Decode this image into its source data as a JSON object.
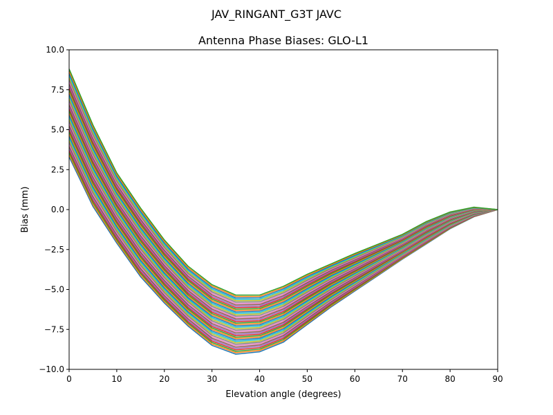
{
  "chart_data": {
    "type": "line",
    "suptitle": "JAV_RINGANT_G3T JAVC",
    "title": "Antenna Phase Biases: GLO-L1",
    "xlabel": "Elevation angle (degrees)",
    "ylabel": "Bias (mm)",
    "xlim": [
      0,
      90
    ],
    "ylim": [
      -10,
      10
    ],
    "xticks": [
      0,
      10,
      20,
      30,
      40,
      50,
      60,
      70,
      80,
      90
    ],
    "yticks": [
      -10.0,
      -7.5,
      -5.0,
      -2.5,
      0.0,
      2.5,
      5.0,
      7.5,
      10.0
    ],
    "ytick_labels": [
      "−10.0",
      "−7.5",
      "−5.0",
      "−2.5",
      "0.0",
      "2.5",
      "5.0",
      "7.5",
      "10.0"
    ],
    "grid": false,
    "colors": [
      "#1f77b4",
      "#ff7f0e",
      "#2ca02c",
      "#d62728",
      "#9467bd",
      "#8c564b",
      "#e377c2",
      "#7f7f7f",
      "#bcbd22",
      "#17becf"
    ],
    "x": [
      0,
      5,
      10,
      15,
      20,
      25,
      30,
      35,
      40,
      45,
      50,
      55,
      60,
      65,
      70,
      75,
      80,
      85,
      90
    ],
    "series": [
      {
        "values": [
          3.3,
          0.2,
          -2.1,
          -4.2,
          -5.85,
          -7.3,
          -8.5,
          -9.05,
          -8.9,
          -8.3,
          -7.2,
          -6.1,
          -5.1,
          -4.1,
          -3.1,
          -2.15,
          -1.2,
          -0.45,
          0
        ]
      },
      {
        "values": [
          4.09,
          0.93,
          -1.47,
          -3.59,
          -5.29,
          -6.76,
          -7.96,
          -8.52,
          -8.39,
          -7.8,
          -6.75,
          -5.71,
          -4.76,
          -3.82,
          -2.88,
          -1.95,
          -1.05,
          -0.36,
          0
        ]
      },
      {
        "values": [
          4.87,
          1.66,
          -0.84,
          -2.97,
          -4.72,
          -6.23,
          -7.41,
          -7.99,
          -7.89,
          -7.3,
          -6.3,
          -5.31,
          -4.43,
          -3.54,
          -2.66,
          -1.75,
          -0.9,
          -0.28,
          0
        ]
      },
      {
        "values": [
          5.66,
          2.39,
          -0.21,
          -2.36,
          -4.16,
          -5.69,
          -6.87,
          -7.46,
          -7.38,
          -6.8,
          -5.85,
          -4.92,
          -4.09,
          -3.26,
          -2.44,
          -1.55,
          -0.75,
          -0.19,
          0
        ]
      },
      {
        "values": [
          6.44,
          3.11,
          0.41,
          -1.74,
          -3.59,
          -5.16,
          -6.33,
          -6.93,
          -6.87,
          -6.3,
          -5.4,
          -4.53,
          -3.76,
          -2.98,
          -2.21,
          -1.35,
          -0.6,
          -0.11,
          0
        ]
      },
      {
        "values": [
          7.23,
          3.84,
          1.04,
          -1.13,
          -3.03,
          -4.62,
          -5.79,
          -6.41,
          -6.36,
          -5.8,
          -4.95,
          -4.14,
          -3.42,
          -2.71,
          -1.99,
          -1.15,
          -0.45,
          -0.02,
          0
        ]
      },
      {
        "values": [
          8.01,
          4.57,
          1.67,
          -0.51,
          -2.46,
          -4.09,
          -5.24,
          -5.88,
          -5.86,
          -5.3,
          -4.5,
          -3.74,
          -3.09,
          -2.43,
          -1.77,
          -0.95,
          -0.3,
          0.06,
          0
        ]
      },
      {
        "values": [
          8.8,
          5.3,
          2.3,
          0.1,
          -1.9,
          -3.55,
          -4.7,
          -5.35,
          -5.35,
          -4.8,
          -4.05,
          -3.4,
          -2.75,
          -2.15,
          -1.55,
          -0.75,
          -0.15,
          0.15,
          0
        ]
      }
    ]
  }
}
